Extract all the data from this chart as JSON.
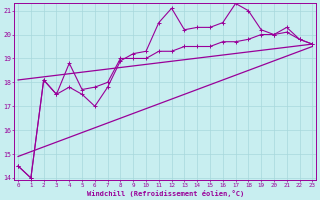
{
  "bg_color": "#c8eef0",
  "grid_color": "#a8d8dc",
  "line_color": "#990099",
  "x_min": 0,
  "x_max": 23,
  "y_min": 14,
  "y_max": 21,
  "y_ticks": [
    14,
    15,
    16,
    17,
    18,
    19,
    20,
    21
  ],
  "x_ticks": [
    0,
    1,
    2,
    3,
    4,
    5,
    6,
    7,
    8,
    9,
    10,
    11,
    12,
    13,
    14,
    15,
    16,
    17,
    18,
    19,
    20,
    21,
    22,
    23
  ],
  "xlabel": "Windchill (Refroidissement éolien,°C)",
  "data1": [
    14.5,
    14.0,
    18.1,
    17.5,
    17.8,
    17.5,
    17.0,
    17.8,
    18.9,
    19.2,
    19.3,
    20.5,
    21.1,
    20.2,
    20.3,
    20.3,
    20.5,
    21.3,
    21.0,
    20.2,
    20.0,
    20.3,
    19.8,
    19.6
  ],
  "data2": [
    14.5,
    14.0,
    18.1,
    17.5,
    18.8,
    17.7,
    17.8,
    18.0,
    19.0,
    19.0,
    19.0,
    19.3,
    19.3,
    19.5,
    19.5,
    19.5,
    19.7,
    19.7,
    19.8,
    20.0,
    20.0,
    20.1,
    19.8,
    19.6
  ],
  "reg1_start": 18.1,
  "reg1_end": 19.6,
  "reg2_start": 14.9,
  "reg2_end": 19.5,
  "marker_size": 2.5,
  "lw_data": 0.8,
  "lw_reg": 0.9
}
